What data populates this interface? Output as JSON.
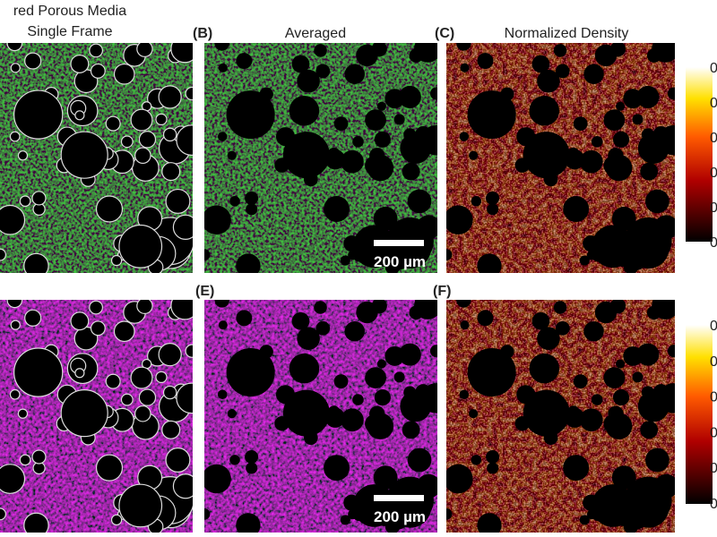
{
  "header": {
    "row_title": "red Porous Media",
    "subtitle": "Single Frame"
  },
  "panels": {
    "b": {
      "label": "(B)",
      "title": "Averaged"
    },
    "c": {
      "label": "(C)",
      "title": "Normalized Density"
    },
    "e": {
      "label": "(E)"
    },
    "f": {
      "label": "(F)"
    }
  },
  "scale_bars": [
    "200 µm",
    "200 µm"
  ],
  "colorbars": [
    {
      "ticks": [
        "0",
        "0",
        "0",
        "0",
        "0",
        "0"
      ]
    },
    {
      "ticks": [
        "0",
        "0",
        "0",
        "0",
        "0",
        "0"
      ]
    }
  ]
}
